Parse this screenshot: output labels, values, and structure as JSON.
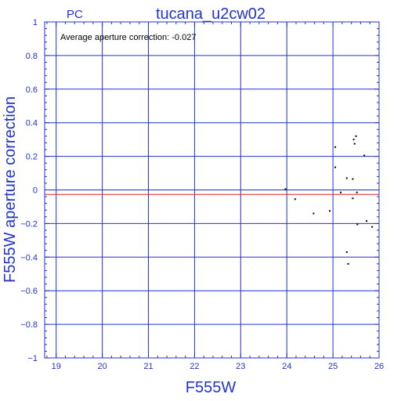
{
  "header": {
    "left_label": "PC",
    "title": "tucana_u2cw02"
  },
  "annotation": "Average aperture correction: -0.027",
  "colors": {
    "frame": "#2233cc",
    "grid": "#2233cc",
    "ref_line": "#dd2222",
    "points": "#000000",
    "text": "#2233cc",
    "annotation_text": "#000000"
  },
  "chart_data": {
    "type": "scatter",
    "title": "tucana_u2cw02",
    "xlabel": "F555W",
    "ylabel": "F555W aperture correction",
    "xlim": [
      18.75,
      26.0
    ],
    "ylim": [
      -1.0,
      1.0
    ],
    "grid": true,
    "x_ticks": [
      19,
      20,
      21,
      22,
      23,
      24,
      25,
      26
    ],
    "x_tick_labels": [
      "19",
      "20",
      "21",
      "22",
      "23",
      "24",
      "25",
      "26"
    ],
    "y_ticks": [
      -1,
      -0.8,
      -0.6,
      -0.4,
      -0.2,
      0,
      0.2,
      0.4,
      0.6,
      0.8,
      1
    ],
    "y_tick_labels": [
      "-1",
      "-0.8",
      "-0.6",
      "-0.4",
      "-0.2",
      "0",
      "0.2",
      "0.4",
      "0.6",
      "0.8",
      "1"
    ],
    "reference_line": {
      "y": -0.027
    },
    "points": [
      {
        "x": 23.97,
        "y": 0.005
      },
      {
        "x": 24.18,
        "y": -0.055
      },
      {
        "x": 24.58,
        "y": -0.14
      },
      {
        "x": 24.93,
        "y": -0.125
      },
      {
        "x": 25.05,
        "y": 0.255
      },
      {
        "x": 25.05,
        "y": 0.135
      },
      {
        "x": 25.17,
        "y": -0.015
      },
      {
        "x": 25.3,
        "y": 0.07
      },
      {
        "x": 25.3,
        "y": -0.37
      },
      {
        "x": 25.33,
        "y": -0.44
      },
      {
        "x": 25.43,
        "y": 0.065
      },
      {
        "x": 25.43,
        "y": -0.05
      },
      {
        "x": 25.45,
        "y": 0.3
      },
      {
        "x": 25.47,
        "y": 0.275
      },
      {
        "x": 25.5,
        "y": 0.32
      },
      {
        "x": 25.52,
        "y": -0.015
      },
      {
        "x": 25.53,
        "y": -0.205
      },
      {
        "x": 25.68,
        "y": 0.205
      },
      {
        "x": 25.73,
        "y": -0.185
      },
      {
        "x": 25.85,
        "y": -0.22
      }
    ]
  }
}
